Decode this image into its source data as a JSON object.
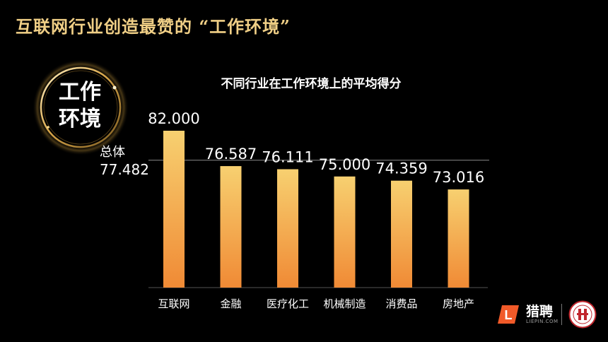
{
  "slide": {
    "title": "互联网行业创造最赞的 “工作环境”",
    "badge_line1": "工作",
    "badge_line2": "环境"
  },
  "brand": {
    "logo_letter": "L",
    "name": "猎聘",
    "domain": "LIEPIN.COM"
  },
  "chart_data": {
    "type": "bar",
    "title": "不同行业在工作环境上的平均得分",
    "categories": [
      "互联网",
      "金融",
      "医疗化工",
      "机械制造",
      "消费品",
      "房地产"
    ],
    "values": [
      82.0,
      76.587,
      76.111,
      75.0,
      74.359,
      73.016
    ],
    "value_labels": [
      "82.000",
      "76.587",
      "76.111",
      "75.000",
      "74.359",
      "73.016"
    ],
    "reference_line": {
      "label": "总体",
      "value": 77.482,
      "value_label": "77.482"
    },
    "bar_gradient": {
      "top": "#f7d070",
      "bottom": "#f08a35"
    },
    "grid": false
  }
}
